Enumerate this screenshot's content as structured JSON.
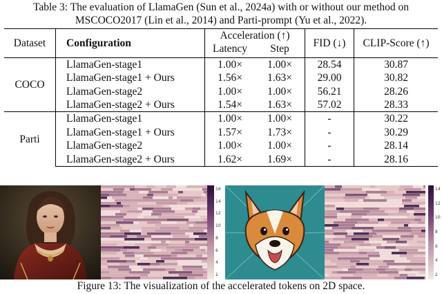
{
  "table_caption": "Table 3: The evaluation of LlamaGen (Sun et al., 2024a) with or without our method on MSCOCO2017 (Lin et al., 2014) and Parti-prompt (Yu et al., 2022).",
  "header": {
    "dataset": "Dataset",
    "configuration": "Configuration",
    "acceleration": "Acceleration (↑)",
    "latency": "Latency",
    "step": "Step",
    "fid": "FID (↓)",
    "clip": "CLIP-Score (↑)"
  },
  "groups": [
    {
      "dataset": "COCO",
      "rows": [
        {
          "config": "LlamaGen-stage1",
          "latency": "1.00×",
          "step": "1.00×",
          "fid": "28.54",
          "clip": "30.87"
        },
        {
          "config": "LlamaGen-stage1 + Ours",
          "latency": "1.56×",
          "step": "1.63×",
          "fid": "29.00",
          "clip": "30.82"
        },
        {
          "config": "LlamaGen-stage2",
          "latency": "1.00×",
          "step": "1.00×",
          "fid": "56.21",
          "clip": "28.26"
        },
        {
          "config": "LlamaGen-stage2 + Ours",
          "latency": "1.54×",
          "step": "1.63×",
          "fid": "57.02",
          "clip": "28.33"
        }
      ]
    },
    {
      "dataset": "Parti",
      "rows": [
        {
          "config": "LlamaGen-stage1",
          "latency": "1.00×",
          "step": "1.00×",
          "fid": "-",
          "clip": "30.22"
        },
        {
          "config": "LlamaGen-stage1 + Ours",
          "latency": "1.57×",
          "step": "1.73×",
          "fid": "-",
          "clip": "30.29"
        },
        {
          "config": "LlamaGen-stage2",
          "latency": "1.00×",
          "step": "1.00×",
          "fid": "-",
          "clip": "28.14"
        },
        {
          "config": "LlamaGen-stage2 + Ours",
          "latency": "1.62×",
          "step": "1.69×",
          "fid": "-",
          "clip": "28.16"
        }
      ]
    }
  ],
  "figure_caption": "Figure 13: The visualization of the accelerated tokens on 2D space.",
  "colorbar_left_ticks": [
    "16",
    "14",
    "12",
    "10",
    "8",
    "6",
    "4",
    "2"
  ],
  "colorbar_right_ticks": [
    "14",
    "12",
    "10",
    "8",
    "6",
    "4",
    "2"
  ],
  "colors": {
    "heat_low": "#efd9d6",
    "heat_mid": "#b07f97",
    "heat_high": "#2d1b3e",
    "colorbar_top": "#2b0f3a",
    "colorbar_bottom": "#f4e8e3"
  }
}
